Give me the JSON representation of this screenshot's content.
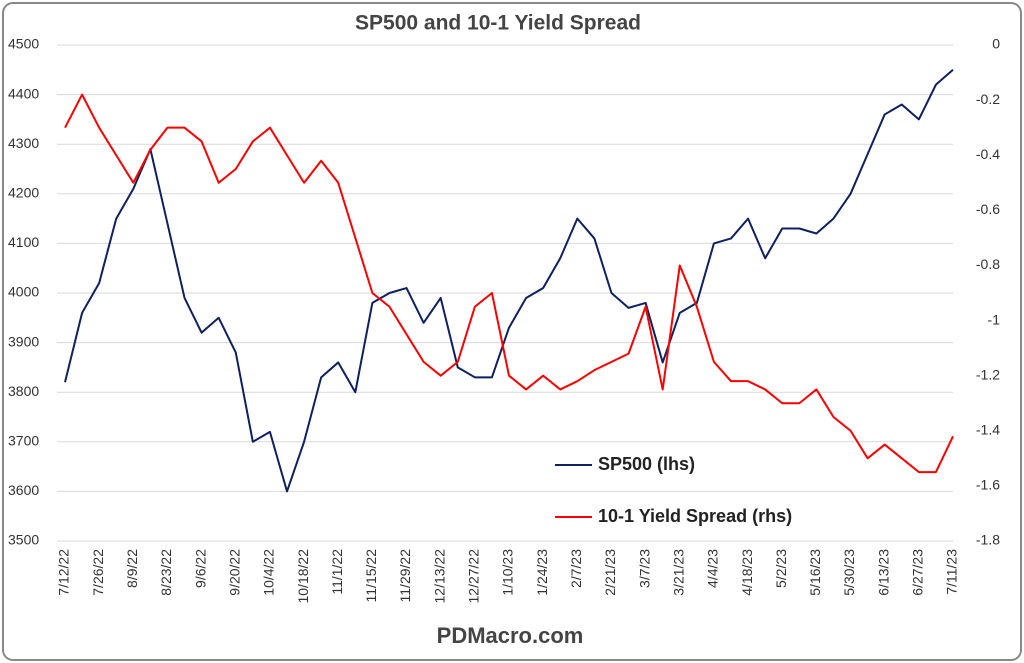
{
  "chart_data": {
    "type": "line",
    "title": "SP500 and 10-1 Yield Spread",
    "source": "PDMacro.com",
    "categories": [
      "7/12/22",
      null,
      "7/26/22",
      null,
      "8/9/22",
      null,
      "8/23/22",
      null,
      "9/6/22",
      null,
      "9/20/22",
      null,
      "10/4/22",
      null,
      "10/18/22",
      null,
      "11/1/22",
      null,
      "11/15/22",
      null,
      "11/29/22",
      null,
      "12/13/22",
      null,
      "12/27/22",
      null,
      "1/10/23",
      null,
      "1/24/23",
      null,
      "2/7/23",
      null,
      "2/21/23",
      null,
      "3/7/23",
      null,
      "3/21/23",
      null,
      "4/4/23",
      null,
      "4/18/23",
      null,
      "5/2/23",
      null,
      "5/16/23",
      null,
      "5/30/23",
      null,
      "6/13/23",
      null,
      "6/27/23",
      null,
      "7/11/23"
    ],
    "series": [
      {
        "name": "SP500 (lhs)",
        "color": "#0d2160",
        "axis": "y",
        "values": [
          3820,
          3960,
          4020,
          4150,
          4210,
          4290,
          4140,
          3990,
          3920,
          3950,
          3880,
          3700,
          3720,
          3600,
          3700,
          3830,
          3860,
          3800,
          3980,
          4000,
          4010,
          3940,
          3990,
          3850,
          3830,
          3830,
          3930,
          3990,
          4010,
          4070,
          4150,
          4110,
          4000,
          3970,
          3980,
          3860,
          3960,
          3980,
          4100,
          4110,
          4150,
          4070,
          4130,
          4130,
          4120,
          4150,
          4200,
          4280,
          4360,
          4380,
          4350,
          4420,
          4450
        ]
      },
      {
        "name": "10-1 Yield Spread (rhs)",
        "color": "#ff0000",
        "axis": "y2",
        "values": [
          -0.3,
          -0.18,
          -0.3,
          -0.4,
          -0.5,
          -0.38,
          -0.3,
          -0.3,
          -0.35,
          -0.5,
          -0.45,
          -0.35,
          -0.3,
          -0.4,
          -0.5,
          -0.42,
          -0.5,
          -0.7,
          -0.9,
          -0.95,
          -1.05,
          -1.15,
          -1.2,
          -1.15,
          -0.95,
          -0.9,
          -1.2,
          -1.25,
          -1.2,
          -1.25,
          -1.22,
          -1.18,
          -1.15,
          -1.12,
          -0.95,
          -1.25,
          -0.8,
          -0.95,
          -1.15,
          -1.22,
          -1.22,
          -1.25,
          -1.3,
          -1.3,
          -1.25,
          -1.35,
          -1.4,
          -1.5,
          -1.45,
          -1.5,
          -1.55,
          -1.55,
          -1.42
        ]
      }
    ],
    "ylim": [
      3500,
      4500
    ],
    "yticks": [
      3500,
      3600,
      3700,
      3800,
      3900,
      4000,
      4100,
      4200,
      4300,
      4400,
      4500
    ],
    "y2lim": [
      -1.8,
      0
    ],
    "y2ticks": [
      -1.8,
      -1.6,
      -1.4,
      -1.2,
      -1,
      -0.8,
      -0.6,
      -0.4,
      -0.2,
      0
    ],
    "grid": true
  }
}
